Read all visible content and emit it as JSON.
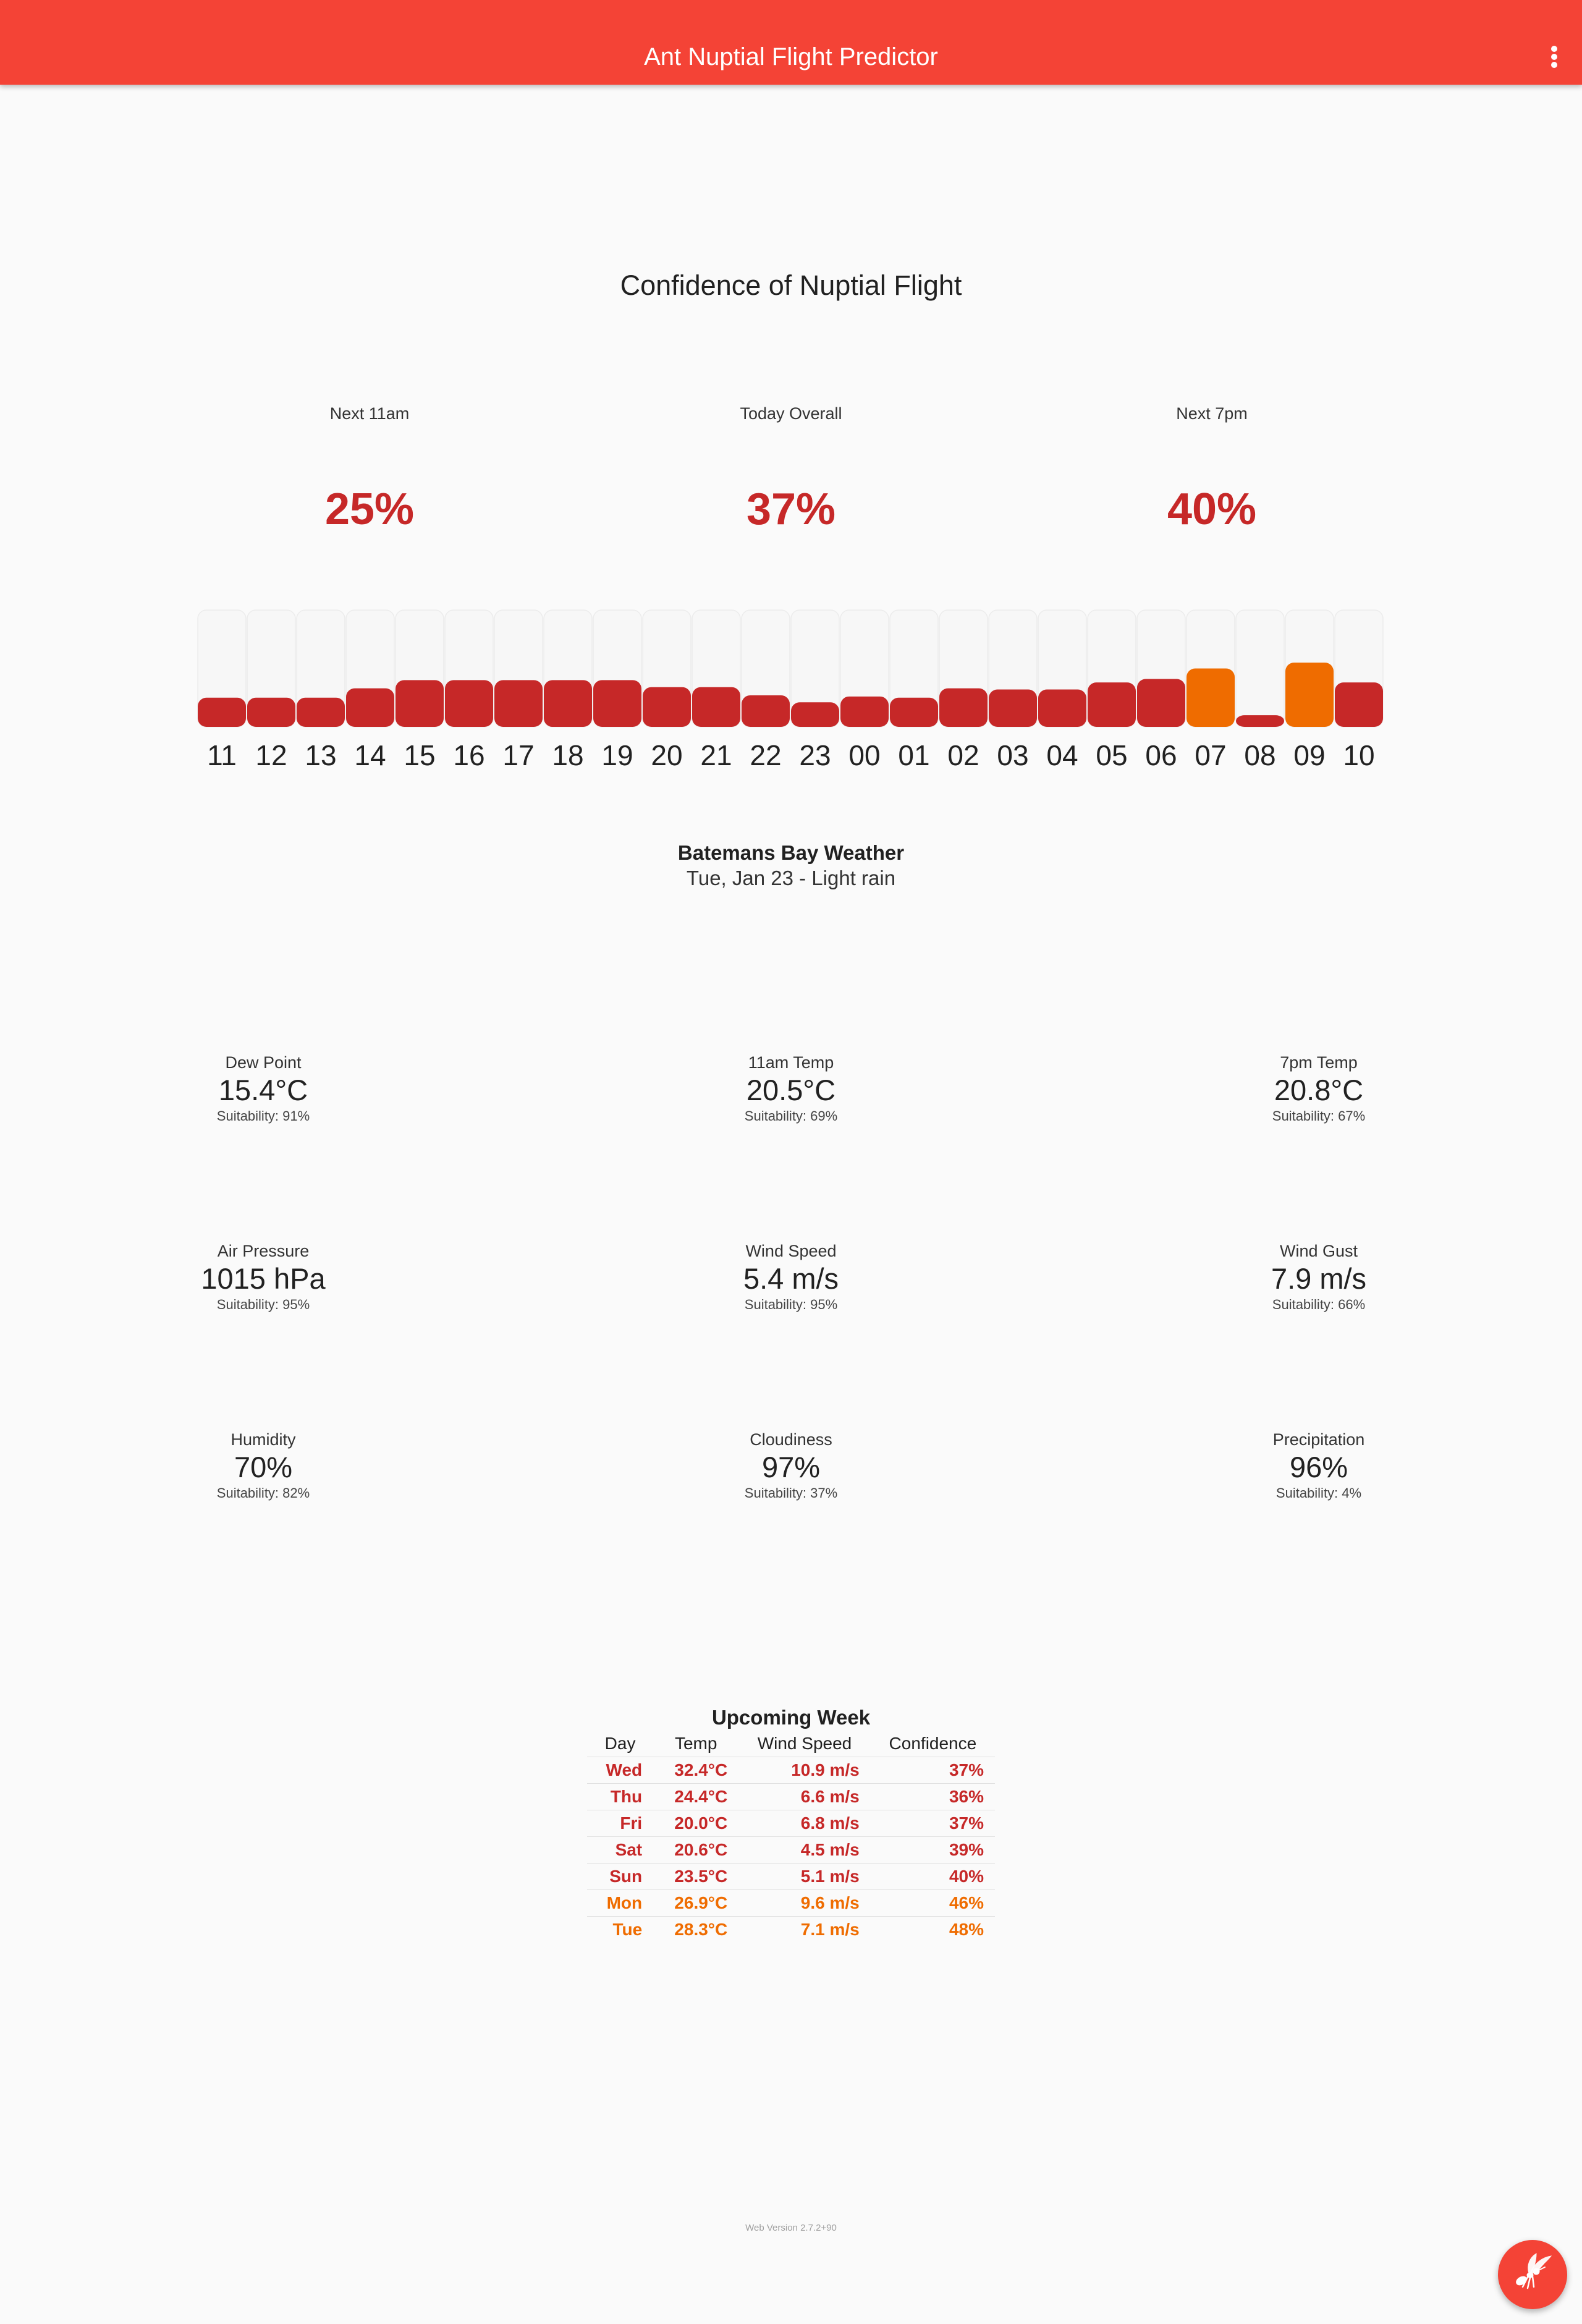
{
  "appbar": {
    "title": "Ant Nuptial Flight Predictor",
    "menu_icon": "more-vert-icon"
  },
  "confidence": {
    "title": "Confidence of Nuptial Flight",
    "items": [
      {
        "label": "Next 11am",
        "value": "25%"
      },
      {
        "label": "Today Overall",
        "value": "37%"
      },
      {
        "label": "Next 7pm",
        "value": "40%"
      }
    ]
  },
  "hourly": {
    "colors": {
      "red": "#c62828",
      "orange": "#ef6c00",
      "track": "#f7f7f7"
    },
    "hours": [
      {
        "label": "11",
        "value": 0.25,
        "color": "red"
      },
      {
        "label": "12",
        "value": 0.25,
        "color": "red"
      },
      {
        "label": "13",
        "value": 0.25,
        "color": "red"
      },
      {
        "label": "14",
        "value": 0.33,
        "color": "red"
      },
      {
        "label": "15",
        "value": 0.4,
        "color": "red"
      },
      {
        "label": "16",
        "value": 0.4,
        "color": "red"
      },
      {
        "label": "17",
        "value": 0.4,
        "color": "red"
      },
      {
        "label": "18",
        "value": 0.4,
        "color": "red"
      },
      {
        "label": "19",
        "value": 0.4,
        "color": "red"
      },
      {
        "label": "20",
        "value": 0.34,
        "color": "red"
      },
      {
        "label": "21",
        "value": 0.34,
        "color": "red"
      },
      {
        "label": "22",
        "value": 0.27,
        "color": "red"
      },
      {
        "label": "23",
        "value": 0.21,
        "color": "red"
      },
      {
        "label": "00",
        "value": 0.26,
        "color": "red"
      },
      {
        "label": "01",
        "value": 0.25,
        "color": "red"
      },
      {
        "label": "02",
        "value": 0.33,
        "color": "red"
      },
      {
        "label": "03",
        "value": 0.32,
        "color": "red"
      },
      {
        "label": "04",
        "value": 0.32,
        "color": "red"
      },
      {
        "label": "05",
        "value": 0.38,
        "color": "red"
      },
      {
        "label": "06",
        "value": 0.41,
        "color": "red"
      },
      {
        "label": "07",
        "value": 0.5,
        "color": "orange"
      },
      {
        "label": "08",
        "value": 0.1,
        "color": "red"
      },
      {
        "label": "09",
        "value": 0.55,
        "color": "orange"
      },
      {
        "label": "10",
        "value": 0.38,
        "color": "red"
      }
    ]
  },
  "weather": {
    "title": "Batemans Bay Weather",
    "subtitle": "Tue, Jan 23 - Light rain",
    "metrics": [
      {
        "label": "Dew Point",
        "value": "15.4°C",
        "suitability": "Suitability: 91%"
      },
      {
        "label": "11am Temp",
        "value": "20.5°C",
        "suitability": "Suitability: 69%"
      },
      {
        "label": "7pm Temp",
        "value": "20.8°C",
        "suitability": "Suitability: 67%"
      },
      {
        "label": "Air Pressure",
        "value": "1015 hPa",
        "suitability": "Suitability: 95%"
      },
      {
        "label": "Wind Speed",
        "value": "5.4 m/s",
        "suitability": "Suitability: 95%"
      },
      {
        "label": "Wind Gust",
        "value": "7.9 m/s",
        "suitability": "Suitability: 66%"
      },
      {
        "label": "Humidity",
        "value": "70%",
        "suitability": "Suitability: 82%"
      },
      {
        "label": "Cloudiness",
        "value": "97%",
        "suitability": "Suitability: 37%"
      },
      {
        "label": "Precipitation",
        "value": "96%",
        "suitability": "Suitability: 4%"
      }
    ]
  },
  "week": {
    "title": "Upcoming Week",
    "headers": {
      "day": "Day",
      "temp": "Temp",
      "wind": "Wind Speed",
      "confidence": "Confidence"
    },
    "rows": [
      {
        "day": "Wed",
        "temp": "32.4°C",
        "wind": "10.9 m/s",
        "confidence": "37%",
        "color": "red"
      },
      {
        "day": "Thu",
        "temp": "24.4°C",
        "wind": "6.6 m/s",
        "confidence": "36%",
        "color": "red"
      },
      {
        "day": "Fri",
        "temp": "20.0°C",
        "wind": "6.8 m/s",
        "confidence": "37%",
        "color": "red"
      },
      {
        "day": "Sat",
        "temp": "20.6°C",
        "wind": "4.5 m/s",
        "confidence": "39%",
        "color": "red"
      },
      {
        "day": "Sun",
        "temp": "23.5°C",
        "wind": "5.1 m/s",
        "confidence": "40%",
        "color": "red"
      },
      {
        "day": "Mon",
        "temp": "26.9°C",
        "wind": "9.6 m/s",
        "confidence": "46%",
        "color": "orange"
      },
      {
        "day": "Tue",
        "temp": "28.3°C",
        "wind": "7.1 m/s",
        "confidence": "48%",
        "color": "orange"
      }
    ]
  },
  "footer": {
    "version": "Web Version 2.7.2+90"
  },
  "fab": {
    "icon": "flying-ant-icon"
  }
}
